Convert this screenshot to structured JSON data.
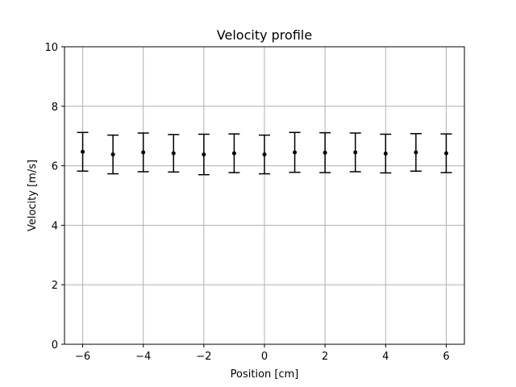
{
  "chart_data": {
    "type": "scatter",
    "title": "Velocity profile",
    "xlabel": "Position [cm]",
    "ylabel": "Velocity [m/s]",
    "xlim": [
      -6.6,
      6.6
    ],
    "ylim": [
      0,
      10
    ],
    "grid": true,
    "xticks": [
      -6,
      -4,
      -2,
      0,
      2,
      4,
      6
    ],
    "xtick_labels": [
      "−6",
      "−4",
      "−2",
      "0",
      "2",
      "4",
      "6"
    ],
    "yticks": [
      0,
      2,
      4,
      6,
      8,
      10
    ],
    "ytick_labels": [
      "0",
      "2",
      "4",
      "6",
      "8",
      "10"
    ],
    "series": [
      {
        "x": [
          -6,
          -5,
          -4,
          -3,
          -2,
          -1,
          0,
          1,
          2,
          3,
          4,
          5,
          6
        ],
        "y": [
          6.47,
          6.38,
          6.45,
          6.42,
          6.38,
          6.42,
          6.38,
          6.45,
          6.44,
          6.45,
          6.41,
          6.45,
          6.42
        ],
        "yerr": [
          0.65,
          0.65,
          0.65,
          0.63,
          0.68,
          0.65,
          0.65,
          0.67,
          0.67,
          0.65,
          0.65,
          0.63,
          0.65
        ],
        "color": "#000000",
        "marker": "dot"
      }
    ]
  },
  "colors": {
    "grid": "#b0b0b0",
    "axes": "#000000",
    "background": "#ffffff"
  }
}
